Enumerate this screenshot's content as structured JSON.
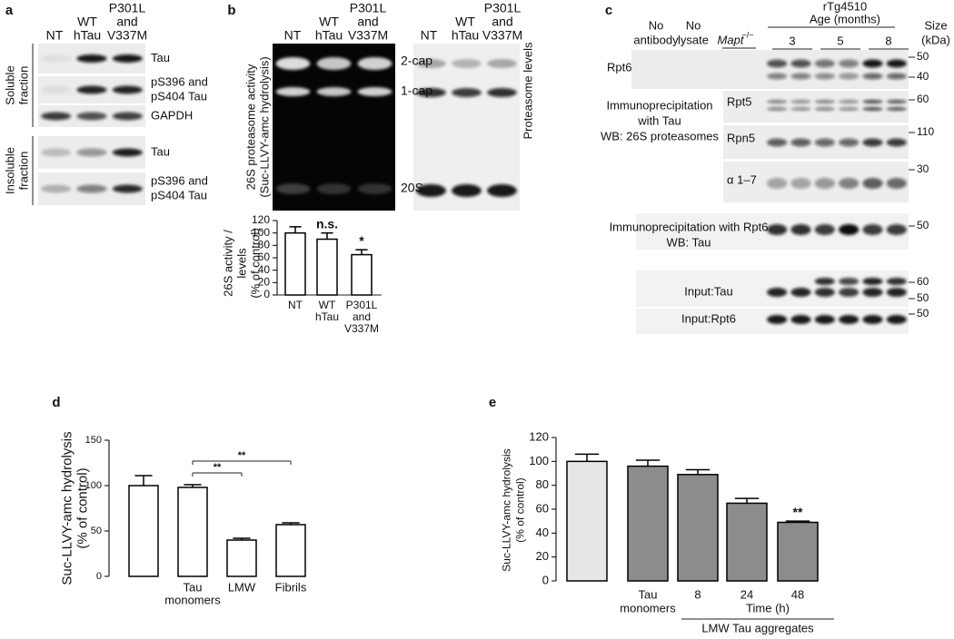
{
  "panel_a": {
    "label": "a",
    "columns": [
      [
        "NT"
      ],
      [
        "WT",
        "hTau"
      ],
      [
        "P301L",
        "and",
        "V337M"
      ]
    ],
    "groups": [
      {
        "name": [
          "Soluble",
          "fraction"
        ],
        "blots": [
          [
            "Tau"
          ],
          [
            "pS396 and",
            "pS404 Tau"
          ],
          [
            "GAPDH"
          ]
        ]
      },
      {
        "name": [
          "Insoluble",
          "fraction"
        ],
        "blots": [
          [
            "Tau"
          ],
          [
            "pS396 and",
            "pS404 Tau"
          ]
        ]
      }
    ]
  },
  "panel_b": {
    "label": "b",
    "columns": [
      [
        "NT"
      ],
      [
        "WT",
        "hTau"
      ],
      [
        "P301L",
        "and",
        "V337M"
      ]
    ],
    "gel_label": [
      "26S proteasome activity",
      "(Suc-LLVY-amc hydrolysis)"
    ],
    "bands": [
      "2-cap",
      "1-cap",
      "20S"
    ],
    "blot_label": "Proteasome levels"
  },
  "panel_c": {
    "label": "c",
    "columns": [
      [
        "No",
        "antibody"
      ],
      [
        "No",
        "lysate"
      ]
    ],
    "mapt": "Mapt",
    "mapt_sup": "−/−",
    "model": "rTg4510",
    "age_label": "Age (months)",
    "ages": [
      "3",
      "5",
      "8"
    ],
    "size_header": [
      "Size",
      "(kDa)"
    ],
    "rows": [
      {
        "label": [
          "Rpt6"
        ],
        "sizes": [
          50,
          40
        ]
      },
      {
        "label": [
          "Immunoprecipitation",
          "with Tau",
          "WB: 26S proteasomes"
        ],
        "blots": [
          {
            "label": "Rpt5",
            "sizes": [
              60
            ]
          },
          {
            "label": "Rpn5",
            "sizes": [
              110
            ]
          },
          {
            "label": "α 1–7",
            "sizes": [
              30
            ]
          }
        ]
      },
      {
        "label": [
          "Immunoprecipitation with Rpt6",
          "WB: Tau"
        ],
        "sizes": [
          50
        ]
      },
      {
        "label": [
          "Input:Tau"
        ],
        "sizes": [
          60,
          50
        ]
      },
      {
        "label": [
          "Input:Rpt6"
        ],
        "sizes": [
          50
        ]
      }
    ]
  },
  "chart_data": [
    {
      "type": "bar",
      "y_label": [
        "26S activity /",
        "levels",
        "(% of control)"
      ],
      "categories": [
        [
          "NT"
        ],
        [
          "WT",
          "hTau"
        ],
        [
          "P301L",
          "and",
          "V337M"
        ]
      ],
      "values": [
        100,
        90,
        65
      ],
      "errors": [
        10,
        10,
        8
      ],
      "color": "#ffffff",
      "bar_annotations": [
        null,
        "n.s.",
        "*"
      ],
      "ylim": [
        0,
        120
      ],
      "yticks": [
        0,
        20,
        40,
        60,
        80,
        100,
        120
      ]
    },
    {
      "type": "bar",
      "panel": "d",
      "y_label": [
        "Suc-LLVY-amc hydrolysis",
        "(% of control)"
      ],
      "categories": [
        null,
        [
          "Tau",
          "monomers"
        ],
        [
          "LMW"
        ],
        [
          "Fibrils"
        ]
      ],
      "values": [
        100,
        98,
        40,
        57
      ],
      "errors": [
        11,
        3,
        2,
        2
      ],
      "color": "#ffffff",
      "comparison_labels": [
        "**",
        "**"
      ],
      "ylim": [
        0,
        150
      ],
      "yticks": [
        0,
        50,
        100,
        150
      ]
    },
    {
      "type": "bar",
      "panel": "e",
      "y_label": [
        "Suc-LLVY-amc hydrolysis",
        "(% of control)"
      ],
      "categories": [
        null,
        [
          "Tau",
          "monomers"
        ],
        [
          "8"
        ],
        [
          "24"
        ],
        [
          "48"
        ]
      ],
      "values": [
        100,
        96,
        89,
        65,
        49
      ],
      "errors": [
        6,
        5,
        4,
        4,
        1
      ],
      "colors": [
        "#e6e6e6",
        "#8c8c8c",
        "#8c8c8c",
        "#8c8c8c",
        "#8c8c8c"
      ],
      "bar_annotations": [
        null,
        null,
        null,
        null,
        "**"
      ],
      "x_label": "Time (h)",
      "group_label": "LMW Tau aggregates",
      "ylim": [
        0,
        120
      ],
      "yticks": [
        0,
        20,
        40,
        60,
        80,
        100,
        120
      ]
    }
  ]
}
